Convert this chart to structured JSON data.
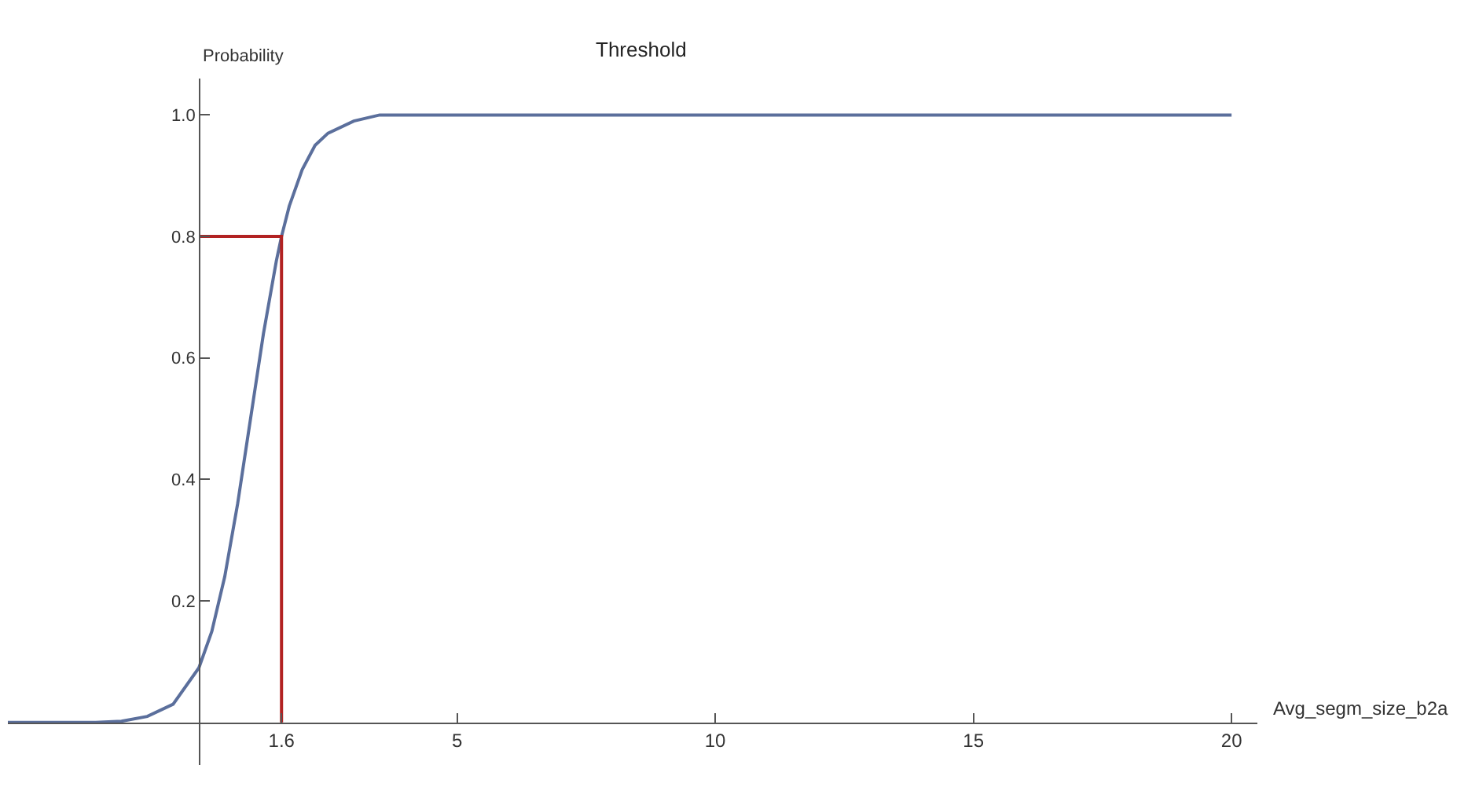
{
  "chart_data": {
    "type": "line",
    "title": "Threshold",
    "xlabel": "Avg_segm_size_b2a",
    "ylabel": "Probability",
    "xlim": [
      -3.7,
      20.5
    ],
    "ylim": [
      -0.07,
      1.06
    ],
    "xticks": [
      {
        "value": 1.6,
        "label": "1.6"
      },
      5,
      10,
      15,
      20
    ],
    "yticks": [
      0.2,
      0.4,
      0.6,
      0.8,
      {
        "value": 1.0,
        "label": "1.0"
      }
    ],
    "marker": "none",
    "line_style": "solid",
    "series": [
      {
        "color": "#5b6f9c",
        "x": [
          -3.7,
          -2,
          -1.5,
          -1,
          -0.5,
          0,
          0.25,
          0.5,
          0.75,
          1.0,
          1.25,
          1.5,
          1.6,
          1.75,
          2.0,
          2.25,
          2.5,
          3.0,
          3.5,
          4,
          20
        ],
        "values": [
          0,
          0,
          0.002,
          0.01,
          0.03,
          0.09,
          0.15,
          0.24,
          0.36,
          0.5,
          0.64,
          0.76,
          0.8,
          0.85,
          0.91,
          0.95,
          0.97,
          0.99,
          1.0,
          1,
          1
        ]
      },
      {
        "color": "#b22222",
        "x": [
          0,
          1.6,
          1.6
        ],
        "values": [
          0.8,
          0.8,
          0
        ]
      }
    ]
  }
}
